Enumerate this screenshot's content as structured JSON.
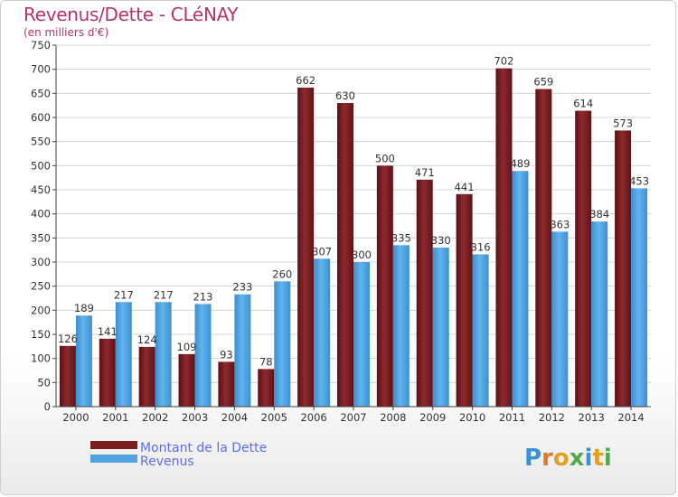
{
  "chart_data": {
    "type": "bar",
    "title": "Revenus/Dette - CLéNAY",
    "subtitle": "(en milliers d'€)",
    "categories": [
      "2000",
      "2001",
      "2002",
      "2003",
      "2004",
      "2005",
      "2006",
      "2007",
      "2008",
      "2009",
      "2010",
      "2011",
      "2012",
      "2013",
      "2014"
    ],
    "series": [
      {
        "name": "Montant de la Dette",
        "values": [
          126,
          141,
          124,
          109,
          93,
          78,
          662,
          630,
          500,
          471,
          441,
          702,
          659,
          614,
          573
        ],
        "color": "#7a1e22"
      },
      {
        "name": "Revenus",
        "values": [
          189,
          217,
          217,
          213,
          233,
          260,
          307,
          300,
          335,
          330,
          316,
          489,
          363,
          384,
          453
        ],
        "color": "#4ea3e0"
      }
    ],
    "ylim": [
      0,
      750
    ],
    "yticks": [
      0,
      50,
      100,
      150,
      200,
      250,
      300,
      350,
      400,
      450,
      500,
      550,
      600,
      650,
      700,
      750
    ],
    "grid": true,
    "legend": "bottom-left"
  },
  "brand": "Proxiti"
}
